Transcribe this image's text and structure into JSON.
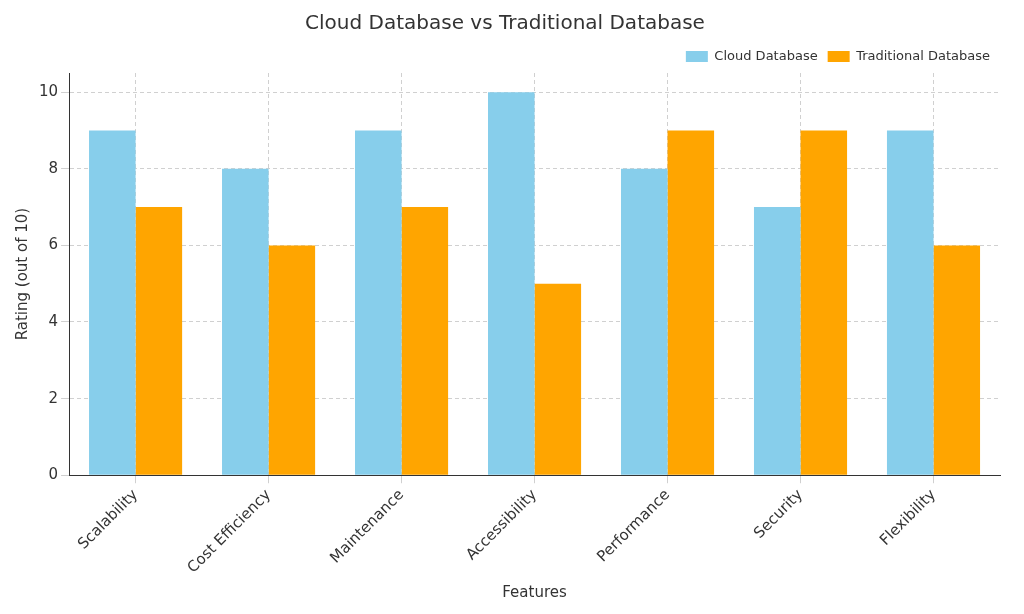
{
  "chart_data": {
    "type": "bar",
    "title": "Cloud Database vs Traditional Database",
    "x_label": "Features",
    "y_label": "Rating (out of 10)",
    "categories": [
      "Scalability",
      "Cost Efficiency",
      "Maintenance",
      "Accessibility",
      "Performance",
      "Security",
      "Flexibility"
    ],
    "series": [
      {
        "name": "Cloud Database",
        "color": "#87ceeb",
        "values": [
          9,
          8,
          9,
          10,
          8,
          7,
          9
        ]
      },
      {
        "name": "Traditional Database",
        "color": "#ffa500",
        "values": [
          7,
          6,
          7,
          5,
          9,
          9,
          6
        ]
      }
    ],
    "ylim": [
      0,
      10.5
    ],
    "yticks": [
      0,
      2,
      4,
      6,
      8,
      10
    ],
    "grid": true,
    "legend": "upper right"
  }
}
